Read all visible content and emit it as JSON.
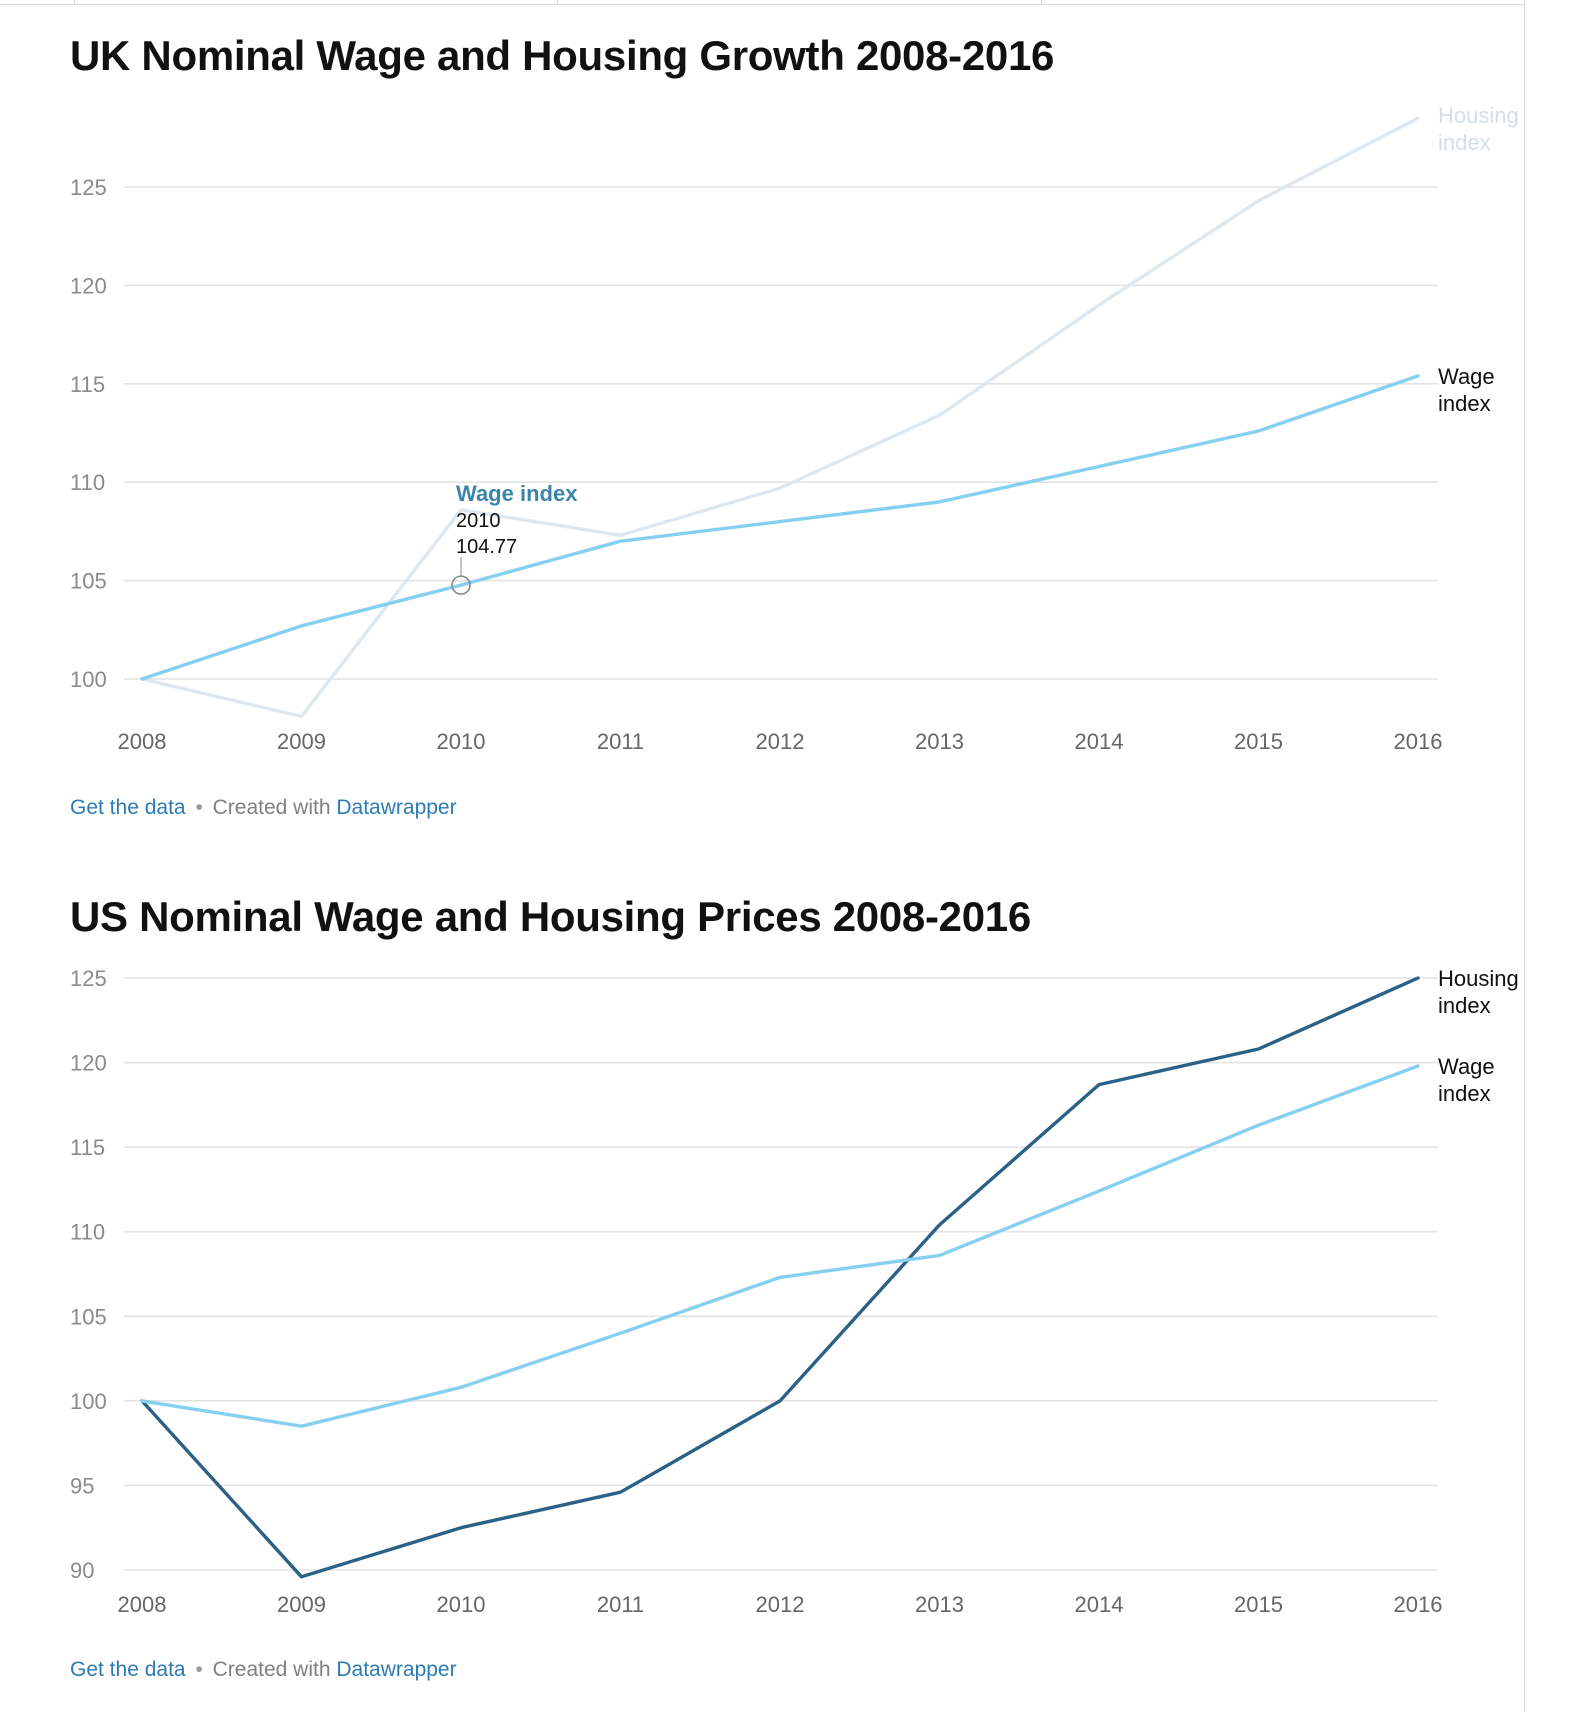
{
  "charts": [
    {
      "title": "UK Nominal Wage and Housing Growth 2008-2016",
      "footer": {
        "link": "Get the data",
        "separator": "•",
        "created": "Created with",
        "tool": "Datawrapper"
      },
      "tooltip": {
        "series": "Wage index",
        "year": "2010",
        "value": "104.77"
      }
    },
    {
      "title": "US Nominal Wage and Housing Prices 2008-2016",
      "footer": {
        "link": "Get the data",
        "separator": "•",
        "created": "Created with",
        "tool": "Datawrapper"
      }
    }
  ],
  "chart_data": [
    {
      "type": "line",
      "title": "UK Nominal Wage and Housing Growth 2008-2016",
      "x": [
        2008,
        2009,
        2010,
        2011,
        2012,
        2013,
        2014,
        2015,
        2016
      ],
      "yticks": [
        100,
        105,
        110,
        115,
        120,
        125
      ],
      "ylim": [
        98,
        129
      ],
      "grid": true,
      "series": [
        {
          "name": "Housing index",
          "label_lines": [
            "Housing",
            "index"
          ],
          "color": "#dfe7ee",
          "label_color": "#d6dee6",
          "values": [
            100,
            98.1,
            108.6,
            107.3,
            109.7,
            113.4,
            119.0,
            124.3,
            128.5
          ]
        },
        {
          "name": "Wage index",
          "label_lines": [
            "Wage",
            "index"
          ],
          "color": "#85cff0",
          "label_color": "#111111",
          "values": [
            100,
            102.7,
            104.77,
            107.0,
            108.0,
            109.0,
            110.8,
            112.6,
            115.4
          ]
        }
      ],
      "highlight": {
        "series": "Wage index",
        "x": 2010,
        "y": 104.77
      }
    },
    {
      "type": "line",
      "title": "US Nominal Wage and Housing Prices 2008-2016",
      "x": [
        2008,
        2009,
        2010,
        2011,
        2012,
        2013,
        2014,
        2015,
        2016
      ],
      "yticks": [
        90,
        95,
        100,
        105,
        110,
        115,
        120,
        125
      ],
      "ylim": [
        89.6,
        125
      ],
      "grid": true,
      "series": [
        {
          "name": "Housing index",
          "label_lines": [
            "Housing",
            "index"
          ],
          "color": "#2a6187",
          "label_color": "#111111",
          "values": [
            100,
            89.6,
            92.5,
            94.6,
            100,
            110.4,
            118.7,
            120.8,
            125.0
          ]
        },
        {
          "name": "Wage index",
          "label_lines": [
            "Wage",
            "index"
          ],
          "color": "#85cff0",
          "label_color": "#111111",
          "values": [
            100,
            98.5,
            100.8,
            104.0,
            107.3,
            108.6,
            112.4,
            116.3,
            119.8
          ]
        }
      ]
    }
  ]
}
